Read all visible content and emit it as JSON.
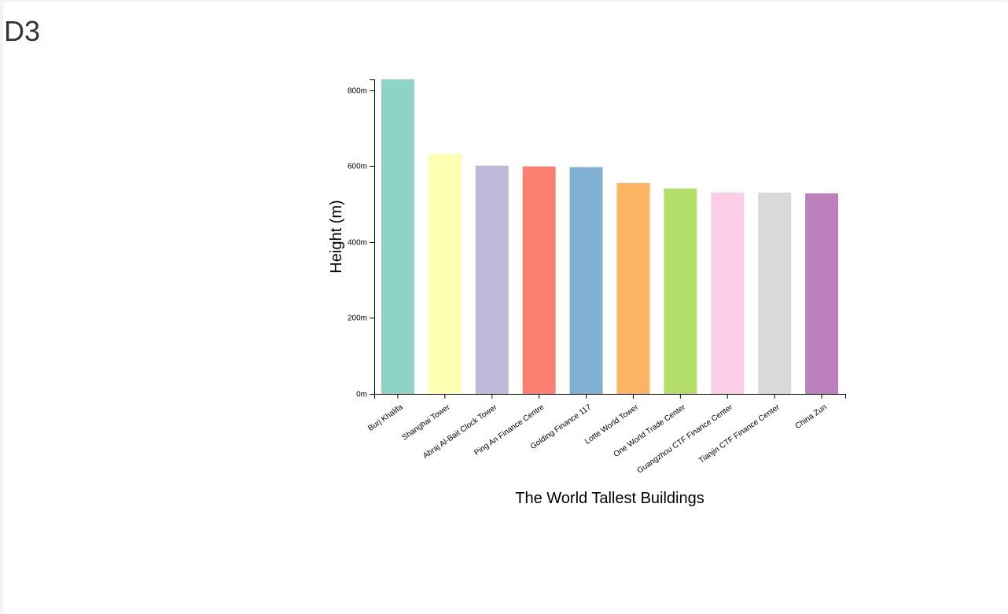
{
  "page": {
    "title": "D3"
  },
  "chart_data": {
    "type": "bar",
    "categories": [
      "Burj Khalifa",
      "Shanghai Tower",
      "Abraj Al-Bait Clock Tower",
      "Ping An Finance Centre",
      "Golding Finance 117",
      "Lotte World Tower",
      "One World Trade Center",
      "Guangzhou CTF Finance Center",
      "Tianjin CTF Finance Center",
      "China Zun"
    ],
    "values": [
      828,
      632,
      601,
      599,
      597,
      555,
      541,
      530,
      530,
      528
    ],
    "colors": [
      "#8dd3c7",
      "#ffffb3",
      "#bebada",
      "#fb8072",
      "#80b1d3",
      "#fdb462",
      "#b3de69",
      "#fccde5",
      "#d9d9d9",
      "#bc80bd"
    ],
    "xlabel": "The World Tallest Buildings",
    "ylabel": "Height (m)",
    "ylim": [
      0,
      828
    ],
    "y_ticks": [
      0,
      200,
      400,
      600,
      800
    ],
    "y_tick_format": "{v}m",
    "grid": false
  }
}
